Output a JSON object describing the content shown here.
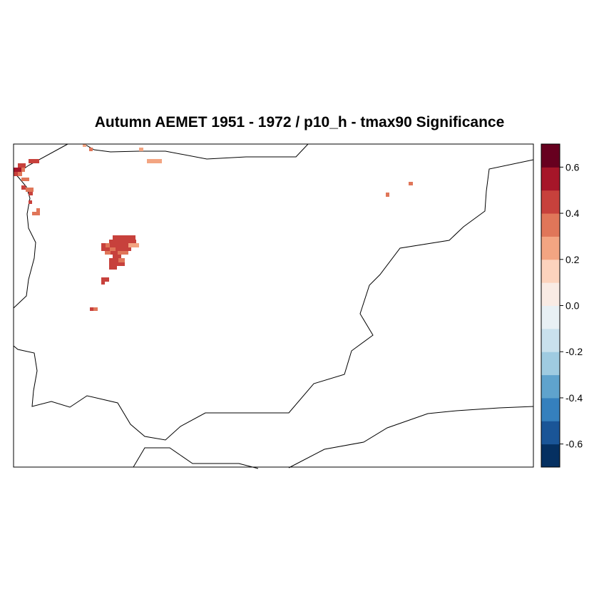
{
  "title": "Autumn AEMET 1951 - 1972 / p10_h - tmax90 Significance",
  "colorbar": {
    "ticks": [
      "0.6",
      "0.4",
      "0.2",
      "0.0",
      "-0.2",
      "-0.4",
      "-0.6"
    ],
    "range": [
      -0.7,
      0.7
    ],
    "colors": [
      "#053061",
      "#1a5597",
      "#3580bd",
      "#5fa3cd",
      "#9fcbe1",
      "#c9e1ed",
      "#e8f0f4",
      "#f9ebe4",
      "#fcd3bd",
      "#f3a582",
      "#e07659",
      "#c7413c",
      "#a61629",
      "#67001f"
    ]
  },
  "significant_cells_colors": {
    "main": "#c7413c",
    "light": "#e07659",
    "pale": "#f3a582",
    "dark": "#a61629"
  }
}
